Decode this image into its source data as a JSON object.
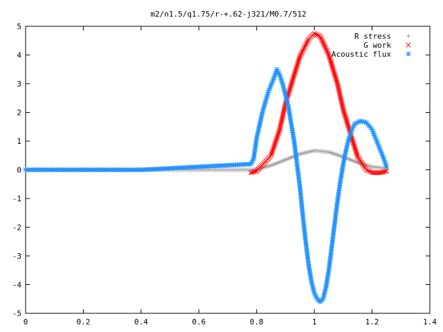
{
  "chart_data": {
    "type": "scatter",
    "title": "m2/n1.5/q1.75/r-+.62-j321/M0.7/512",
    "xlabel": "",
    "ylabel": "",
    "xlim": [
      0,
      1.4
    ],
    "ylim": [
      -5,
      5
    ],
    "x_ticks": [
      "0",
      "0.2",
      "0.4",
      "0.6",
      "0.8",
      "1",
      "1.2",
      "1.4"
    ],
    "y_ticks": [
      "5",
      "4",
      "3",
      "2",
      "1",
      "0",
      "-1",
      "-2",
      "-3",
      "-4",
      "-5"
    ],
    "legend_position": "top-right",
    "grid": false,
    "series": [
      {
        "name": "R stress",
        "marker": "+",
        "color": "#a0a0a0",
        "x": [
          0.0,
          0.4,
          0.78,
          0.8,
          0.85,
          0.9,
          0.95,
          1.0,
          1.05,
          1.1,
          1.15,
          1.2,
          1.25
        ],
        "y": [
          0.0,
          0.0,
          0.0,
          0.02,
          0.15,
          0.35,
          0.55,
          0.67,
          0.62,
          0.45,
          0.25,
          0.1,
          0.05
        ]
      },
      {
        "name": "G work",
        "marker": "x",
        "color": "#ff0000",
        "x": [
          0.78,
          0.8,
          0.85,
          0.88,
          0.9,
          0.93,
          0.95,
          0.98,
          1.0,
          1.02,
          1.05,
          1.08,
          1.1,
          1.13,
          1.15,
          1.18,
          1.2,
          1.23,
          1.25
        ],
        "y": [
          -0.1,
          -0.05,
          0.5,
          1.4,
          2.3,
          3.3,
          3.95,
          4.55,
          4.75,
          4.65,
          4.0,
          3.0,
          2.1,
          1.1,
          0.45,
          0.0,
          -0.1,
          -0.1,
          -0.05
        ]
      },
      {
        "name": "Acoustic flux",
        "marker": "*",
        "color": "#1e90ff",
        "x": [
          0.0,
          0.4,
          0.78,
          0.79,
          0.8,
          0.82,
          0.84,
          0.86,
          0.87,
          0.88,
          0.89,
          0.9,
          0.91,
          0.92,
          0.93,
          0.94,
          0.95,
          0.96,
          0.97,
          0.98,
          0.99,
          1.0,
          1.01,
          1.02,
          1.03,
          1.04,
          1.05,
          1.06,
          1.07,
          1.08,
          1.09,
          1.1,
          1.11,
          1.12,
          1.13,
          1.14,
          1.16,
          1.18,
          1.2,
          1.22,
          1.24,
          1.25
        ],
        "y": [
          0.0,
          0.0,
          0.2,
          0.4,
          1.1,
          2.0,
          2.7,
          3.2,
          3.5,
          3.3,
          3.0,
          2.6,
          2.2,
          1.6,
          1.0,
          0.2,
          -0.6,
          -1.6,
          -2.5,
          -3.3,
          -3.9,
          -4.3,
          -4.5,
          -4.6,
          -4.5,
          -4.1,
          -3.5,
          -2.7,
          -1.9,
          -1.1,
          -0.4,
          0.2,
          0.7,
          1.1,
          1.4,
          1.6,
          1.7,
          1.65,
          1.4,
          0.9,
          0.4,
          0.1
        ]
      }
    ]
  }
}
